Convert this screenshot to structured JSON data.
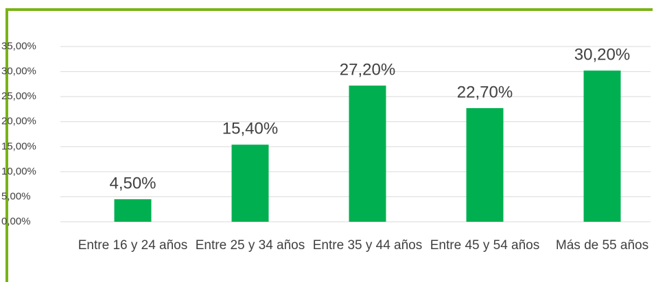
{
  "chart_data": {
    "type": "bar",
    "categories": [
      "Entre 16 y 24 años",
      "Entre 25 y 34 años",
      "Entre 35 y 44 años",
      "Entre 45 y 54 años",
      "Más de 55 años"
    ],
    "values": [
      4.5,
      15.4,
      27.2,
      22.7,
      30.2
    ],
    "value_labels": [
      "4,50%",
      "15,40%",
      "27,20%",
      "22,70%",
      "30,20%"
    ],
    "color": "#00b050",
    "ylim": [
      0,
      35
    ],
    "yticks": [
      {
        "value": 0,
        "label": "0,00%"
      },
      {
        "value": 5,
        "label": "5,00%"
      },
      {
        "value": 10,
        "label": "10,00%"
      },
      {
        "value": 15,
        "label": "15,00%"
      },
      {
        "value": 20,
        "label": "20,00%"
      },
      {
        "value": 25,
        "label": "25,00%"
      },
      {
        "value": 30,
        "label": "30,00%"
      },
      {
        "value": 35,
        "label": "35,00%"
      }
    ],
    "grid": true
  }
}
